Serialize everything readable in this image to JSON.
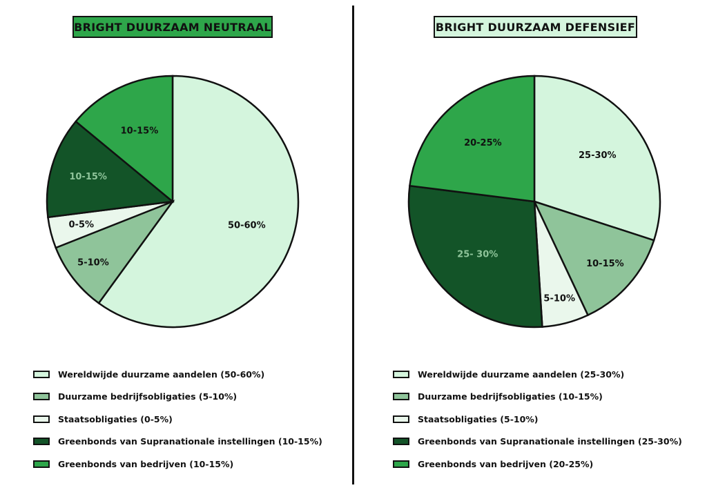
{
  "colors": {
    "very_light": "#d4f5dd",
    "mid": "#8fc49a",
    "pale": "#eaf7ec",
    "dark": "#135428",
    "accent": "#2ea64a"
  },
  "chart_data": [
    {
      "type": "pie",
      "title": "BRIGHT DUURZAAM NEUTRAAL",
      "title_bg": "#2ea64a",
      "slices": [
        {
          "label": "50-60%",
          "value": 60,
          "color": "#d4f5dd",
          "label_color": "#111111",
          "legend": "Wereldwijde duurzame aandelen (50-60%)"
        },
        {
          "label": "5-10%",
          "value": 9,
          "color": "#8fc49a",
          "label_color": "#111111",
          "legend": "Duurzame bedrijfsobligaties (5-10%)"
        },
        {
          "label": "0-5%",
          "value": 4,
          "color": "#eaf7ec",
          "label_color": "#111111",
          "legend": "Staatsobligaties  (0-5%)"
        },
        {
          "label": "10-15%",
          "value": 13,
          "color": "#135428",
          "label_color": "#8fc49a",
          "legend": "Greenbonds van Supranationale instellingen (10-15%)"
        },
        {
          "label": "10-15%",
          "value": 14,
          "color": "#2ea64a",
          "label_color": "#111111",
          "legend": "Greenbonds van bedrijven (10-15%)"
        }
      ]
    },
    {
      "type": "pie",
      "title": "BRIGHT DUURZAAM DEFENSIEF",
      "title_bg": "#d4f5dd",
      "slices": [
        {
          "label": "25-30%",
          "value": 30,
          "color": "#d4f5dd",
          "label_color": "#111111",
          "legend": "Wereldwijde duurzame aandelen (25-30%)"
        },
        {
          "label": "10-15%",
          "value": 13,
          "color": "#8fc49a",
          "label_color": "#111111",
          "legend": "Duurzame bedrijfsobligaties (10-15%)"
        },
        {
          "label": "5-10%",
          "value": 6,
          "color": "#eaf7ec",
          "label_color": "#111111",
          "legend": "Staatsobligaties  (5-10%)"
        },
        {
          "label": "25- 30%",
          "value": 28,
          "color": "#135428",
          "label_color": "#8fc49a",
          "legend": "Greenbonds van Supranationale instellingen (25-30%)"
        },
        {
          "label": "20-25%",
          "value": 23,
          "color": "#2ea64a",
          "label_color": "#111111",
          "legend": "Greenbonds van bedrijven (20-25%)"
        }
      ]
    }
  ]
}
